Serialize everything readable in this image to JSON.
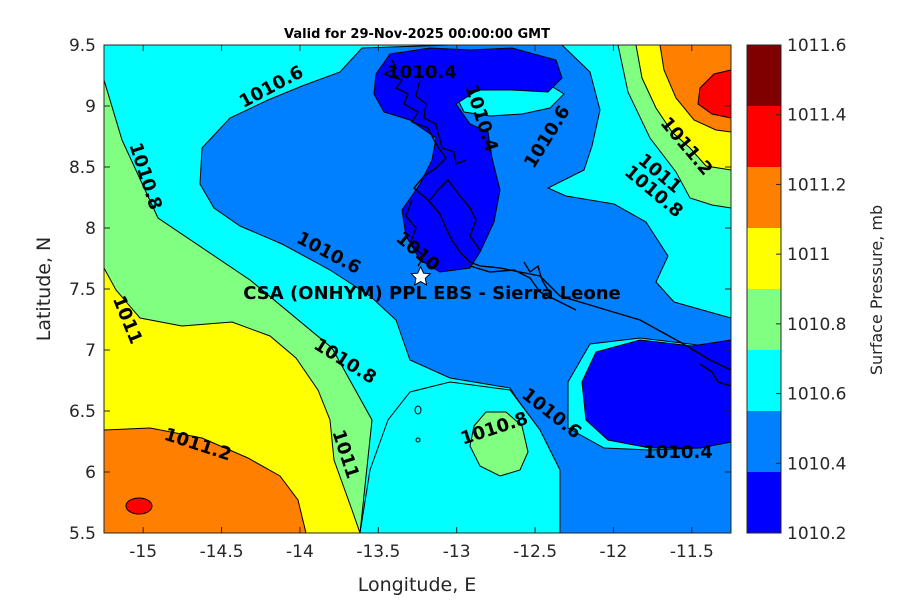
{
  "title": "Valid for 29-Nov-2025 00:00:00 GMT",
  "x_axis": {
    "label": "Longitude, E",
    "ticks": [
      "-15",
      "-14.5",
      "-14",
      "-13.5",
      "-13",
      "-12.5",
      "-12",
      "-11.5"
    ]
  },
  "y_axis": {
    "label": "Latitude, N",
    "ticks": [
      "9.5",
      "9",
      "8.5",
      "8",
      "7.5",
      "7",
      "6.5",
      "6",
      "5.5"
    ]
  },
  "colorbar": {
    "label": "Surface Pressure, mb",
    "ticks": [
      "1011.6",
      "1011.4",
      "1011.2",
      "1011",
      "1010.8",
      "1010.6",
      "1010.4",
      "1010.2"
    ],
    "colors": [
      "#800000",
      "#ff0000",
      "#ff8000",
      "#ffff00",
      "#80ff80",
      "#00ffff",
      "#0080ff",
      "#0000ff"
    ]
  },
  "site": {
    "name": "CSA (ONHYM) PPL EBS  - Sierra Leone",
    "lon": -13.23,
    "lat": 7.6
  },
  "contour_labels": {
    "c1": "1010.4",
    "c2": "1010.6",
    "c3": "1010.4",
    "c4": "1010.6",
    "c5": "1010.8",
    "c6": "1011.2",
    "c7": "1011",
    "c8": "1010.8",
    "c9": "1010.6",
    "c10": "1010",
    "c11": "1011",
    "c12": "1010.8",
    "c13": "1010.8",
    "c14": "1010.6",
    "c15": "1011.2",
    "c16": "1011",
    "c17": "1010.4"
  }
}
